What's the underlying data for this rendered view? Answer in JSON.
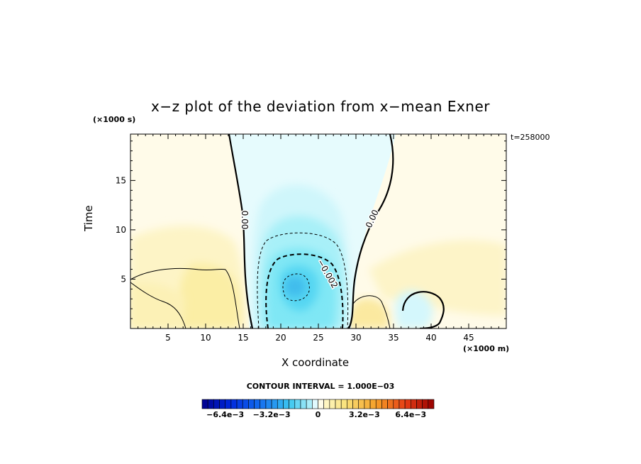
{
  "chart_data": {
    "type": "heatmap",
    "title": "x−z plot of the deviation from x−mean Exner",
    "xlabel": "X coordinate",
    "ylabel": "Time",
    "x_units": "(×1000 m)",
    "y_units": "(×1000 s)",
    "timestamp": "t=258000",
    "x_range": [
      0,
      50
    ],
    "y_range": [
      0,
      19.7
    ],
    "x_ticks": [
      5,
      10,
      15,
      20,
      25,
      30,
      35,
      40,
      45
    ],
    "y_ticks": [
      5,
      10,
      15
    ],
    "contour_interval_text": "CONTOUR INTERVAL = 1.000E−03",
    "contour_labels": [
      {
        "text": "0.00",
        "x": 14.8,
        "y": 11.0
      },
      {
        "text": "0.00",
        "x": 32.5,
        "y": 11.0
      },
      {
        "text": "−0.002",
        "x": 25.9,
        "y": 5.4
      }
    ],
    "field_features": [
      {
        "kind": "minimum",
        "x": 21.8,
        "y": 4.6,
        "value": -0.004
      },
      {
        "kind": "maximum",
        "x": 32.5,
        "y": 0.8,
        "value": 0.002
      },
      {
        "kind": "minimum",
        "x": 36.5,
        "y": 2.5,
        "value": -0.001
      },
      {
        "kind": "maximum",
        "x": 44.0,
        "y": 5.0,
        "value": 0.001
      }
    ],
    "colorbar": {
      "range": [
        -0.008,
        0.008
      ],
      "tick_labels": [
        {
          "text": "−6.4e−3",
          "value": -0.0064
        },
        {
          "text": "−3.2e−3",
          "value": -0.0032
        },
        {
          "text": "0",
          "value": 0
        },
        {
          "text": "3.2e−3",
          "value": 0.0032
        },
        {
          "text": "6.4e−3",
          "value": 0.0064
        }
      ]
    }
  }
}
